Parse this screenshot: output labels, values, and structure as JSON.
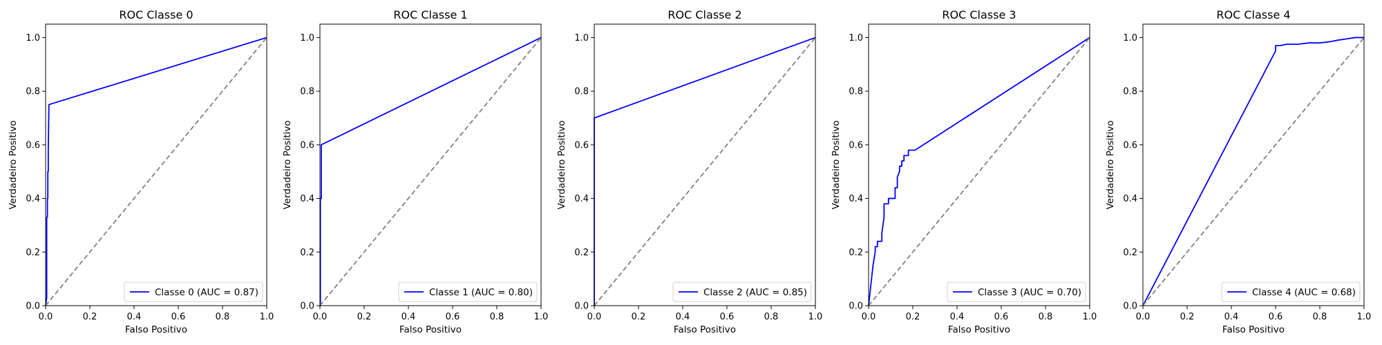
{
  "chart_data": [
    {
      "type": "line",
      "title": "ROC Classe 0",
      "xlabel": "Falso Positivo",
      "ylabel": "Verdadeiro Positivo",
      "xlim": [
        0,
        1
      ],
      "ylim": [
        0,
        1.05
      ],
      "xticks": [
        "0.0",
        "0.2",
        "0.4",
        "0.6",
        "0.8",
        "1.0"
      ],
      "yticks": [
        "0.0",
        "0.2",
        "0.4",
        "0.6",
        "0.8",
        "1.0"
      ],
      "legend_position": "lower-right",
      "series": [
        {
          "name": "Classe 0 (AUC = 0.87)",
          "color": "#0000ff",
          "x": [
            0,
            0.005,
            0.005,
            0.008,
            0.008,
            0.01,
            0.01,
            0.012,
            0.012,
            0.015,
            1.0
          ],
          "y": [
            0,
            0.03,
            0.33,
            0.33,
            0.4,
            0.4,
            0.5,
            0.5,
            0.58,
            0.75,
            1.0
          ]
        },
        {
          "name": "",
          "color": "#808080",
          "dashed": true,
          "x": [
            0,
            1
          ],
          "y": [
            0,
            1
          ]
        }
      ]
    },
    {
      "type": "line",
      "title": "ROC Classe 1",
      "xlabel": "Falso Positivo",
      "ylabel": "Verdadeiro Positivo",
      "xlim": [
        0,
        1
      ],
      "ylim": [
        0,
        1.05
      ],
      "xticks": [
        "0.0",
        "0.2",
        "0.4",
        "0.6",
        "0.8",
        "1.0"
      ],
      "yticks": [
        "0.0",
        "0.2",
        "0.4",
        "0.6",
        "0.8",
        "1.0"
      ],
      "legend_position": "lower-right",
      "series": [
        {
          "name": "Classe 1 (AUC = 0.80)",
          "color": "#0000ff",
          "x": [
            0,
            0.002,
            0.002,
            0.006,
            0.006,
            1.0
          ],
          "y": [
            0,
            0.0,
            0.4,
            0.4,
            0.6,
            1.0
          ]
        },
        {
          "name": "",
          "color": "#808080",
          "dashed": true,
          "x": [
            0,
            1
          ],
          "y": [
            0,
            1
          ]
        }
      ]
    },
    {
      "type": "line",
      "title": "ROC Classe 2",
      "xlabel": "Falso Positivo",
      "ylabel": "Verdadeiro Positivo",
      "xlim": [
        0,
        1
      ],
      "ylim": [
        0,
        1.05
      ],
      "xticks": [
        "0.0",
        "0.2",
        "0.4",
        "0.6",
        "0.8",
        "1.0"
      ],
      "yticks": [
        "0.0",
        "0.2",
        "0.4",
        "0.6",
        "0.8",
        "1.0"
      ],
      "legend_position": "lower-right",
      "series": [
        {
          "name": "Classe 2 (AUC = 0.85)",
          "color": "#0000ff",
          "x": [
            0,
            0,
            1.0
          ],
          "y": [
            0,
            0.7,
            1.0
          ]
        },
        {
          "name": "",
          "color": "#808080",
          "dashed": true,
          "x": [
            0,
            1
          ],
          "y": [
            0,
            1
          ]
        }
      ]
    },
    {
      "type": "line",
      "title": "ROC Classe 3",
      "xlabel": "Falso Positivo",
      "ylabel": "Verdadeiro Positivo",
      "xlim": [
        0,
        1
      ],
      "ylim": [
        0,
        1.05
      ],
      "xticks": [
        "0.0",
        "0.2",
        "0.4",
        "0.6",
        "0.8",
        "1.0"
      ],
      "yticks": [
        "0.0",
        "0.2",
        "0.4",
        "0.6",
        "0.8",
        "1.0"
      ],
      "legend_position": "lower-right",
      "series": [
        {
          "name": "Classe 3 (AUC = 0.70)",
          "color": "#0000ff",
          "x": [
            0,
            0.02,
            0.03,
            0.03,
            0.04,
            0.04,
            0.05,
            0.06,
            0.06,
            0.07,
            0.07,
            0.09,
            0.09,
            0.12,
            0.12,
            0.13,
            0.13,
            0.14,
            0.14,
            0.15,
            0.15,
            0.16,
            0.16,
            0.18,
            0.18,
            0.21,
            1.0
          ],
          "y": [
            0,
            0.15,
            0.2,
            0.22,
            0.22,
            0.24,
            0.24,
            0.24,
            0.27,
            0.33,
            0.38,
            0.38,
            0.4,
            0.4,
            0.44,
            0.44,
            0.48,
            0.5,
            0.52,
            0.52,
            0.54,
            0.54,
            0.56,
            0.56,
            0.58,
            0.58,
            1.0
          ]
        },
        {
          "name": "",
          "color": "#808080",
          "dashed": true,
          "x": [
            0,
            1
          ],
          "y": [
            0,
            1
          ]
        }
      ]
    },
    {
      "type": "line",
      "title": "ROC Classe 4",
      "xlabel": "Falso Positivo",
      "ylabel": "Verdadeiro Positivo",
      "xlim": [
        0,
        1
      ],
      "ylim": [
        0,
        1.05
      ],
      "xticks": [
        "0.0",
        "0.2",
        "0.4",
        "0.6",
        "0.8",
        "1.0"
      ],
      "yticks": [
        "0.0",
        "0.2",
        "0.4",
        "0.6",
        "0.8",
        "1.0"
      ],
      "legend_position": "lower-right",
      "series": [
        {
          "name": "Classe 4 (AUC = 0.68)",
          "color": "#0000ff",
          "x": [
            0,
            0.6,
            0.6,
            0.62,
            0.65,
            0.7,
            0.75,
            0.8,
            0.85,
            0.88,
            0.92,
            0.96,
            1.0
          ],
          "y": [
            0,
            0.95,
            0.97,
            0.97,
            0.975,
            0.975,
            0.98,
            0.98,
            0.985,
            0.99,
            0.995,
            1.0,
            1.0
          ]
        },
        {
          "name": "",
          "color": "#808080",
          "dashed": true,
          "x": [
            0,
            1
          ],
          "y": [
            0,
            1
          ]
        }
      ]
    }
  ]
}
